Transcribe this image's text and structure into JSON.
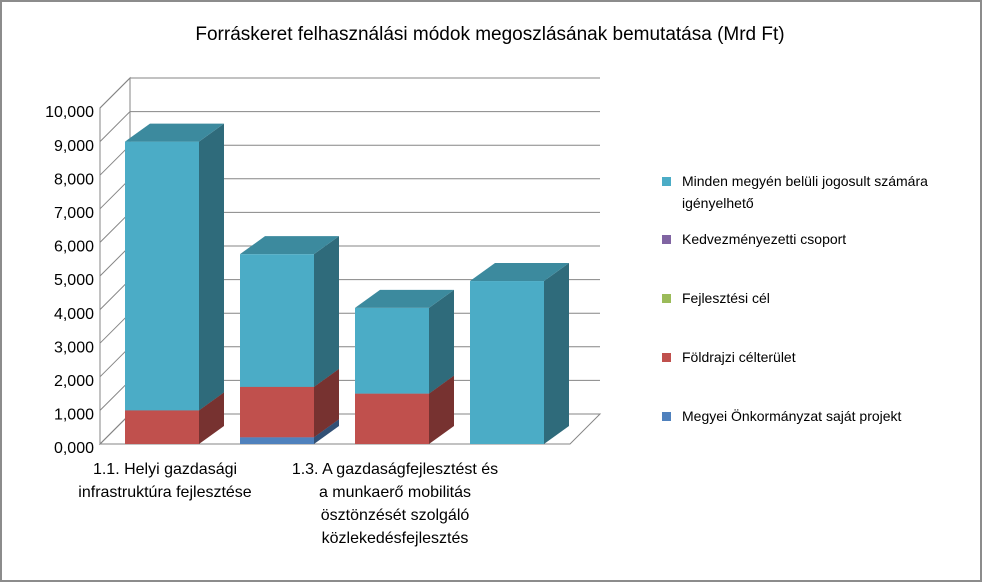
{
  "chart_data": {
    "type": "bar3d_stacked",
    "title": "Forráskeret felhasználási módok megoszlásának bemutatása (Mrd Ft)",
    "categories": [
      "1.1. Helyi gazdasági infrastruktúra fejlesztése",
      null,
      "1.3. A gazdaságfejlesztést és a munkaerő mobilitás ösztönzését szolgáló közlekedésfejlesztés",
      null
    ],
    "series": [
      {
        "name": "Megyei Önkormányzat saját projekt",
        "color": "#4f81bd",
        "values": [
          0,
          0.2,
          0,
          0
        ]
      },
      {
        "name": "Földrajzi célterület",
        "color": "#c0504d",
        "values": [
          1.0,
          1.5,
          1.5,
          0
        ]
      },
      {
        "name": "Fejlesztési cél",
        "color": "#9bbb59",
        "values": [
          0,
          0,
          0,
          0
        ]
      },
      {
        "name": "Kedvezményezetti csoport",
        "color": "#8064a2",
        "values": [
          0,
          0,
          0,
          0
        ]
      },
      {
        "name": "Minden megyén belüli jogosult számára igényelhető",
        "color": "#4bacc6",
        "values": [
          8.0,
          3.95,
          2.55,
          4.85
        ]
      }
    ],
    "ylim": [
      0,
      10
    ],
    "yticks": [
      {
        "value": 0,
        "label": "0,000"
      },
      {
        "value": 1,
        "label": "1,000"
      },
      {
        "value": 2,
        "label": "2,000"
      },
      {
        "value": 3,
        "label": "3,000"
      },
      {
        "value": 4,
        "label": "4,000"
      },
      {
        "value": 5,
        "label": "5,000"
      },
      {
        "value": 6,
        "label": "6,000"
      },
      {
        "value": 7,
        "label": "7,000"
      },
      {
        "value": 8,
        "label": "8,000"
      },
      {
        "value": 9,
        "label": "9,000"
      },
      {
        "value": 10,
        "label": "10,000"
      }
    ],
    "grid": true,
    "legend": "right"
  }
}
